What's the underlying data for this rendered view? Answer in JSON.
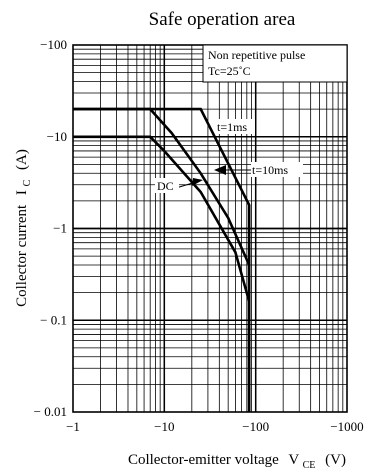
{
  "chart_data": {
    "type": "line",
    "title": "Safe operation area",
    "xlabel": "Collector-emitter voltage",
    "xlabel_symbol": "V",
    "xlabel_sub": "CE",
    "xlabel_unit": "(V)",
    "ylabel": "Collector current",
    "ylabel_symbol": "I",
    "ylabel_sub": "C",
    "ylabel_unit": "(A)",
    "x_scale": "log",
    "y_scale": "log",
    "xlim": [
      -1,
      -1000
    ],
    "ylim": [
      -0.01,
      -100
    ],
    "x_ticks": [
      -1,
      -10,
      -100,
      -1000
    ],
    "x_tick_labels": [
      "−1",
      "−10",
      "−100",
      "−1000"
    ],
    "y_ticks": [
      -0.01,
      -0.1,
      -1,
      -10,
      -100
    ],
    "y_tick_labels": [
      "− 0.01",
      "− 0.1",
      "−1",
      "−10",
      "−100"
    ],
    "grid": true,
    "legend_lines": [
      "Non repetitive pulse",
      "Tc=25˚C"
    ],
    "legend_placement": "top-right",
    "series": [
      {
        "name": "t=1ms",
        "x": [
          -1,
          -25,
          -85,
          -85
        ],
        "y": [
          -20,
          -20,
          -1.8,
          -0.01
        ]
      },
      {
        "name": "t=10ms",
        "x": [
          -1,
          -7,
          -12,
          -25,
          -50,
          -85,
          -85
        ],
        "y": [
          -20,
          -20,
          -11,
          -4,
          -1.3,
          -0.4,
          -0.01
        ]
      },
      {
        "name": "DC",
        "x": [
          -1,
          -7,
          -10,
          -25,
          -60,
          -85,
          -85
        ],
        "y": [
          -10,
          -10,
          -7,
          -2.5,
          -0.55,
          -0.16,
          -0.01
        ]
      }
    ],
    "annotations": [
      {
        "label": "t=1ms"
      },
      {
        "label": "t=10ms"
      },
      {
        "label": "DC"
      }
    ]
  }
}
